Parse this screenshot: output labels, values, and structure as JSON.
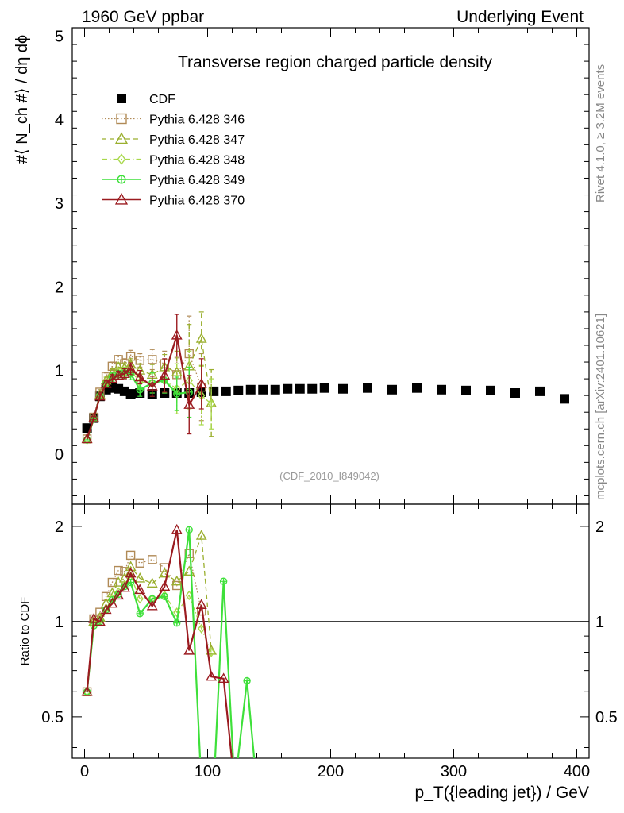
{
  "header": {
    "left": "1960 GeV ppbar",
    "right": "Underlying Event"
  },
  "side_labels": {
    "rivet": "Rivet 4.1.0, ≥ 3.2M events",
    "mcplots": "mcplots.cern.ch [arXiv:2401.10621]"
  },
  "chart_data": [
    {
      "type": "scatter",
      "title": "Transverse region charged particle density",
      "watermark": "(CDF_2010_I849042)",
      "ylabel": "#⟨ N_ch #⟩ / dη dϕ",
      "xlabel": "",
      "xlim": [
        -10,
        410
      ],
      "ylim": [
        -0.6,
        5.1
      ],
      "yticks": [
        0,
        1,
        2,
        3,
        4,
        5
      ],
      "series": [
        {
          "name": "CDF",
          "color": "#000000",
          "marker": "square-filled",
          "line": "none",
          "points": [
            [
              2,
              0.31
            ],
            [
              7.5,
              0.43
            ],
            [
              12.5,
              0.69
            ],
            [
              17.5,
              0.77
            ],
            [
              22.5,
              0.79
            ],
            [
              27.5,
              0.78
            ],
            [
              32.5,
              0.75
            ],
            [
              37.5,
              0.72
            ],
            [
              45,
              0.73
            ],
            [
              55,
              0.72
            ],
            [
              65,
              0.73
            ],
            [
              75,
              0.73
            ],
            [
              85,
              0.73
            ],
            [
              95,
              0.74
            ],
            [
              105,
              0.75
            ],
            [
              115,
              0.75
            ],
            [
              125,
              0.76
            ],
            [
              135,
              0.77
            ],
            [
              145,
              0.77
            ],
            [
              155,
              0.77
            ],
            [
              165,
              0.78
            ],
            [
              175,
              0.78
            ],
            [
              185,
              0.78
            ],
            [
              195,
              0.79
            ],
            [
              210,
              0.78
            ],
            [
              230,
              0.79
            ],
            [
              250,
              0.77
            ],
            [
              270,
              0.79
            ],
            [
              290,
              0.77
            ],
            [
              310,
              0.76
            ],
            [
              330,
              0.76
            ],
            [
              350,
              0.73
            ],
            [
              370,
              0.75
            ],
            [
              390,
              0.66
            ]
          ]
        },
        {
          "name": "Pythia 6.428 346",
          "color": "#b08a56",
          "marker": "square-open",
          "line": "dotted",
          "points": [
            [
              2,
              0.18,
              0
            ],
            [
              7.5,
              0.44,
              0.02
            ],
            [
              12.5,
              0.74,
              0.03
            ],
            [
              17.5,
              0.93,
              0.04
            ],
            [
              22.5,
              1.05,
              0.05
            ],
            [
              27.5,
              1.13,
              0.05
            ],
            [
              32.5,
              1.08,
              0.06
            ],
            [
              37.5,
              1.17,
              0.07
            ],
            [
              45,
              1.12,
              0.08
            ],
            [
              55,
              1.13,
              0.12
            ],
            [
              65,
              1.08,
              0.15
            ],
            [
              75,
              0.95,
              0.2
            ],
            [
              85,
              1.2,
              0.45
            ],
            [
              95,
              0.8,
              0.4
            ]
          ]
        },
        {
          "name": "Pythia 6.428 347",
          "color": "#9aaf2e",
          "marker": "triangle-open",
          "line": "dashed",
          "points": [
            [
              2,
              0.18,
              0
            ],
            [
              7.5,
              0.43,
              0.02
            ],
            [
              12.5,
              0.71,
              0.03
            ],
            [
              17.5,
              0.88,
              0.04
            ],
            [
              22.5,
              0.97,
              0.05
            ],
            [
              27.5,
              1.04,
              0.05
            ],
            [
              32.5,
              1.03,
              0.06
            ],
            [
              37.5,
              1.07,
              0.07
            ],
            [
              45,
              1.0,
              0.08
            ],
            [
              55,
              0.95,
              0.12
            ],
            [
              65,
              1.04,
              0.15
            ],
            [
              75,
              0.98,
              0.25
            ],
            [
              85,
              1.05,
              0.5
            ],
            [
              95,
              1.38,
              0.32
            ],
            [
              103,
              0.61,
              0.4
            ]
          ]
        },
        {
          "name": "Pythia 6.428 348",
          "color": "#a8d84a",
          "marker": "diamond-open",
          "line": "dashdot",
          "points": [
            [
              2,
              0.17,
              0
            ],
            [
              7.5,
              0.42,
              0.02
            ],
            [
              12.5,
              0.7,
              0.03
            ],
            [
              17.5,
              0.85,
              0.04
            ],
            [
              22.5,
              0.93,
              0.05
            ],
            [
              27.5,
              0.97,
              0.05
            ],
            [
              32.5,
              0.98,
              0.06
            ],
            [
              37.5,
              1.0,
              0.07
            ],
            [
              45,
              0.86,
              0.08
            ],
            [
              55,
              0.85,
              0.12
            ],
            [
              65,
              0.88,
              0.15
            ],
            [
              75,
              0.78,
              0.3
            ],
            [
              85,
              0.88,
              0.35
            ],
            [
              95,
              0.7,
              0.35
            ],
            [
              103,
              0.6,
              0.3
            ]
          ]
        },
        {
          "name": "Pythia 6.428 349",
          "color": "#3ee03a",
          "marker": "circle-plus",
          "line": "solid",
          "points": [
            [
              2,
              0.17,
              0
            ],
            [
              7.5,
              0.42,
              0.02
            ],
            [
              12.5,
              0.7,
              0.03
            ],
            [
              17.5,
              0.84,
              0.04
            ],
            [
              22.5,
              0.92,
              0.05
            ],
            [
              27.5,
              0.95,
              0.05
            ],
            [
              32.5,
              0.97,
              0.06
            ],
            [
              37.5,
              0.96,
              0.07
            ],
            [
              45,
              0.77,
              0.08
            ],
            [
              55,
              0.85,
              0.12
            ],
            [
              65,
              0.88,
              0.15
            ],
            [
              75,
              0.72,
              0.2
            ],
            [
              85,
              0.74,
              0.3
            ]
          ]
        },
        {
          "name": "Pythia 6.428 370",
          "color": "#9b1b20",
          "marker": "triangle-open",
          "line": "solid",
          "points": [
            [
              2,
              0.18,
              0
            ],
            [
              7.5,
              0.43,
              0.02
            ],
            [
              12.5,
              0.69,
              0.03
            ],
            [
              17.5,
              0.84,
              0.04
            ],
            [
              22.5,
              0.9,
              0.05
            ],
            [
              27.5,
              0.94,
              0.05
            ],
            [
              32.5,
              0.96,
              0.06
            ],
            [
              37.5,
              1.02,
              0.07
            ],
            [
              45,
              0.92,
              0.08
            ],
            [
              55,
              0.81,
              0.12
            ],
            [
              65,
              0.94,
              0.2
            ],
            [
              75,
              1.42,
              0.25
            ],
            [
              85,
              0.59,
              0.35
            ],
            [
              95,
              0.84,
              0.3
            ]
          ]
        }
      ]
    },
    {
      "type": "line",
      "title": "",
      "ylabel": "Ratio to CDF",
      "xlabel": "p_T({leading jet}) / GeV",
      "xlim": [
        -10,
        410
      ],
      "ylim": [
        0.37,
        2.35
      ],
      "yticks": [
        0.5,
        1,
        2
      ],
      "xticks": [
        0,
        100,
        200,
        300,
        400
      ],
      "reference": 1,
      "series": [
        {
          "name": "Pythia 6.428 346",
          "points": [
            [
              2,
              0.6
            ],
            [
              7.5,
              1.02
            ],
            [
              12.5,
              1.07
            ],
            [
              17.5,
              1.2
            ],
            [
              22.5,
              1.33
            ],
            [
              27.5,
              1.45
            ],
            [
              32.5,
              1.44
            ],
            [
              37.5,
              1.62
            ],
            [
              45,
              1.53
            ],
            [
              55,
              1.57
            ],
            [
              65,
              1.48
            ],
            [
              75,
              1.3
            ],
            [
              85,
              1.64
            ],
            [
              95,
              1.08
            ]
          ]
        },
        {
          "name": "Pythia 6.428 347",
          "points": [
            [
              2,
              0.6
            ],
            [
              7.5,
              1.0
            ],
            [
              12.5,
              1.03
            ],
            [
              17.5,
              1.14
            ],
            [
              22.5,
              1.23
            ],
            [
              27.5,
              1.33
            ],
            [
              32.5,
              1.37
            ],
            [
              37.5,
              1.49
            ],
            [
              45,
              1.37
            ],
            [
              55,
              1.32
            ],
            [
              65,
              1.42
            ],
            [
              75,
              1.34
            ],
            [
              85,
              1.44
            ],
            [
              95,
              1.87
            ],
            [
              103,
              0.81
            ]
          ]
        },
        {
          "name": "Pythia 6.428 348",
          "points": [
            [
              2,
              0.6
            ],
            [
              7.5,
              0.98
            ],
            [
              12.5,
              1.01
            ],
            [
              17.5,
              1.1
            ],
            [
              22.5,
              1.18
            ],
            [
              27.5,
              1.24
            ],
            [
              32.5,
              1.31
            ],
            [
              37.5,
              1.39
            ],
            [
              45,
              1.18
            ],
            [
              55,
              1.18
            ],
            [
              65,
              1.21
            ],
            [
              75,
              1.07
            ],
            [
              85,
              1.21
            ],
            [
              95,
              0.95
            ],
            [
              103,
              0.8
            ]
          ]
        },
        {
          "name": "Pythia 6.428 349",
          "points": [
            [
              2,
              0.6
            ],
            [
              7.5,
              0.97
            ],
            [
              12.5,
              1.0
            ],
            [
              17.5,
              1.09
            ],
            [
              22.5,
              1.17
            ],
            [
              27.5,
              1.22
            ],
            [
              32.5,
              1.29
            ],
            [
              37.5,
              1.33
            ],
            [
              45,
              1.06
            ],
            [
              55,
              1.18
            ],
            [
              65,
              1.2
            ],
            [
              75,
              0.99
            ],
            [
              85,
              1.95
            ],
            [
              95,
              0.3
            ],
            [
              105,
              0.3
            ],
            [
              113,
              1.34
            ],
            [
              122,
              0.3
            ],
            [
              132,
              0.65
            ],
            [
              140,
              0.3
            ]
          ]
        },
        {
          "name": "Pythia 6.428 370",
          "points": [
            [
              2,
              0.6
            ],
            [
              7.5,
              1.02
            ],
            [
              12.5,
              1.0
            ],
            [
              17.5,
              1.09
            ],
            [
              22.5,
              1.14
            ],
            [
              27.5,
              1.21
            ],
            [
              32.5,
              1.28
            ],
            [
              37.5,
              1.42
            ],
            [
              45,
              1.26
            ],
            [
              55,
              1.12
            ],
            [
              65,
              1.29
            ],
            [
              75,
              1.95
            ],
            [
              85,
              0.81
            ],
            [
              95,
              1.13
            ],
            [
              103,
              0.67
            ],
            [
              113,
              0.66
            ],
            [
              122,
              0.3
            ]
          ]
        }
      ]
    }
  ]
}
